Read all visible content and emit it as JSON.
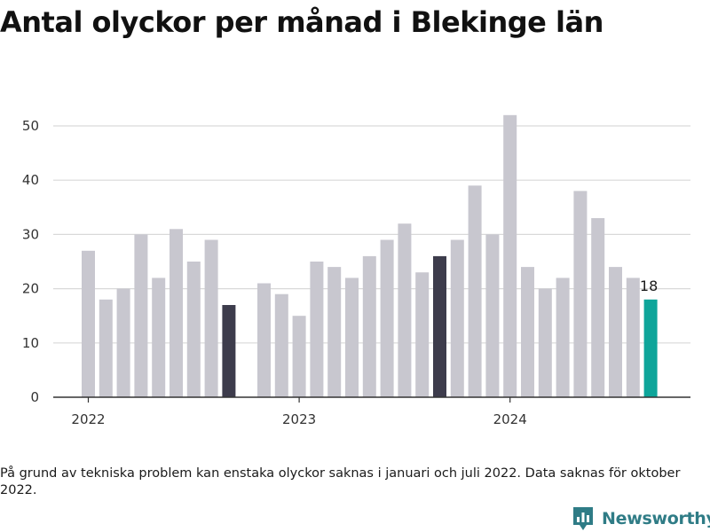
{
  "title": "Antal olyckor per månad i Blekinge län",
  "footnote": "På grund av tekniska problem kan enstaka olyckor saknas i januari och juli 2022. Data saknas för oktober 2022.",
  "brand": "Newsworthy",
  "colors": {
    "bar_default": "#c8c7cf",
    "bar_highlight": "#3d3c4c",
    "bar_latest": "#0ea59a",
    "gridline": "#d9d9d9",
    "axis": "#333333",
    "brand": "#2f7c86"
  },
  "chart_data": {
    "type": "bar",
    "title": "Antal olyckor per månad i Blekinge län",
    "xlabel": "",
    "ylabel": "",
    "ylim": [
      0,
      55
    ],
    "yticks": [
      0,
      10,
      20,
      30,
      40,
      50
    ],
    "grid": true,
    "x_tick_labels": [
      {
        "label": "2022",
        "at": "2022-01"
      },
      {
        "label": "2023",
        "at": "2023-01"
      },
      {
        "label": "2024",
        "at": "2024-01"
      }
    ],
    "points": [
      {
        "month": "2022-01",
        "value": 27
      },
      {
        "month": "2022-02",
        "value": 18
      },
      {
        "month": "2022-03",
        "value": 20
      },
      {
        "month": "2022-04",
        "value": 30
      },
      {
        "month": "2022-05",
        "value": 22
      },
      {
        "month": "2022-06",
        "value": 31
      },
      {
        "month": "2022-07",
        "value": 25
      },
      {
        "month": "2022-08",
        "value": 29
      },
      {
        "month": "2022-09",
        "value": 17,
        "style": "highlight"
      },
      {
        "month": "2022-10",
        "value": null
      },
      {
        "month": "2022-11",
        "value": 21
      },
      {
        "month": "2022-12",
        "value": 19
      },
      {
        "month": "2023-01",
        "value": 15
      },
      {
        "month": "2023-02",
        "value": 25
      },
      {
        "month": "2023-03",
        "value": 24
      },
      {
        "month": "2023-04",
        "value": 22
      },
      {
        "month": "2023-05",
        "value": 26
      },
      {
        "month": "2023-06",
        "value": 29
      },
      {
        "month": "2023-07",
        "value": 32
      },
      {
        "month": "2023-08",
        "value": 23
      },
      {
        "month": "2023-09",
        "value": 26,
        "style": "highlight"
      },
      {
        "month": "2023-10",
        "value": 29
      },
      {
        "month": "2023-11",
        "value": 39
      },
      {
        "month": "2023-12",
        "value": 30
      },
      {
        "month": "2024-01",
        "value": 52
      },
      {
        "month": "2024-02",
        "value": 24
      },
      {
        "month": "2024-03",
        "value": 20
      },
      {
        "month": "2024-04",
        "value": 22
      },
      {
        "month": "2024-05",
        "value": 38
      },
      {
        "month": "2024-06",
        "value": 33
      },
      {
        "month": "2024-07",
        "value": 24
      },
      {
        "month": "2024-08",
        "value": 22
      },
      {
        "month": "2024-09",
        "value": 18,
        "style": "latest",
        "label": "18"
      }
    ]
  }
}
